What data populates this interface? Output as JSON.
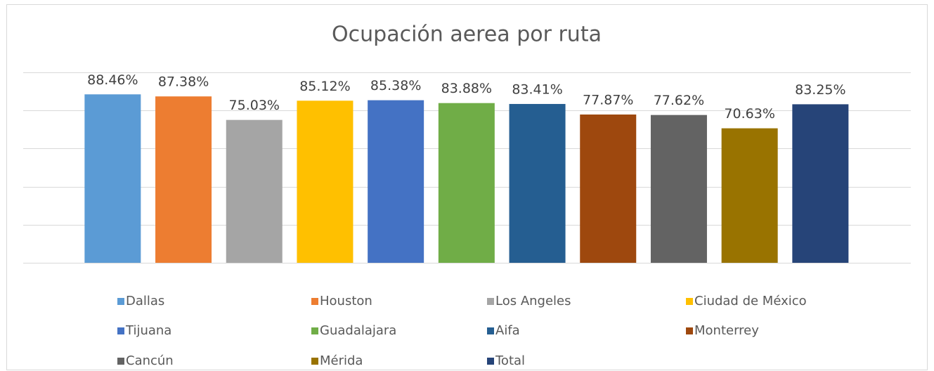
{
  "chart_data": {
    "type": "bar",
    "title": "Ocupación aerea por ruta",
    "ylim": [
      0,
      100
    ],
    "yticks": [
      0,
      20,
      40,
      60,
      80,
      100
    ],
    "grid": true,
    "legend": "bottom",
    "series": [
      {
        "name": "Dallas",
        "color": "#5b9bd5",
        "values": [
          88.46
        ],
        "value_labels": [
          "88.46%"
        ]
      },
      {
        "name": "Houston",
        "color": "#ed7d31",
        "values": [
          87.38
        ],
        "value_labels": [
          "87.38%"
        ]
      },
      {
        "name": "Los Angeles",
        "color": "#a5a5a5",
        "values": [
          75.03
        ],
        "value_labels": [
          "75.03%"
        ]
      },
      {
        "name": "Ciudad de México",
        "color": "#ffc000",
        "values": [
          85.12
        ],
        "value_labels": [
          "85.12%"
        ]
      },
      {
        "name": "Tijuana",
        "color": "#4472c4",
        "values": [
          85.38
        ],
        "value_labels": [
          "85.38%"
        ]
      },
      {
        "name": "Guadalajara",
        "color": "#70ad47",
        "values": [
          83.88
        ],
        "value_labels": [
          "83.88%"
        ]
      },
      {
        "name": "Aifa",
        "color": "#255e91",
        "values": [
          83.41
        ],
        "value_labels": [
          "83.41%"
        ]
      },
      {
        "name": "Monterrey",
        "color": "#9e480e",
        "values": [
          77.87
        ],
        "value_labels": [
          "77.87%"
        ]
      },
      {
        "name": "Cancún",
        "color": "#636363",
        "values": [
          77.62
        ],
        "value_labels": [
          "77.62%"
        ]
      },
      {
        "name": "Mérida",
        "color": "#997300",
        "values": [
          70.63
        ],
        "value_labels": [
          "70.63%"
        ]
      },
      {
        "name": "Total",
        "color": "#264478",
        "values": [
          83.25
        ],
        "value_labels": [
          "83.25%"
        ]
      }
    ]
  }
}
